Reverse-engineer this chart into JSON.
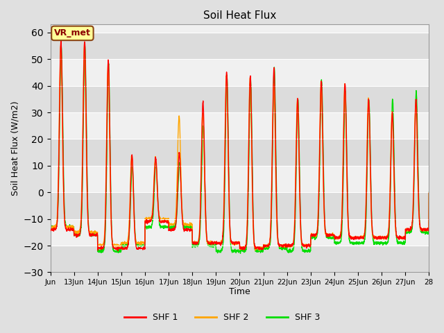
{
  "title": "Soil Heat Flux",
  "ylabel": "Soil Heat Flux (W/m2)",
  "xlabel": "Time",
  "ylim": [
    -30,
    63
  ],
  "yticks": [
    -30,
    -20,
    -10,
    0,
    10,
    20,
    30,
    40,
    50,
    60
  ],
  "line_colors": [
    "#FF0000",
    "#FFA500",
    "#00DD00"
  ],
  "line_labels": [
    "SHF 1",
    "SHF 2",
    "SHF 3"
  ],
  "line_width": 1.0,
  "bg_color": "#E0E0E0",
  "plot_bg_color": "#F0F0F0",
  "band_colors": [
    "#F0F0F0",
    "#DCDCDC"
  ],
  "vr_met_label": "VR_met",
  "n_days": 16,
  "points_per_day": 144
}
